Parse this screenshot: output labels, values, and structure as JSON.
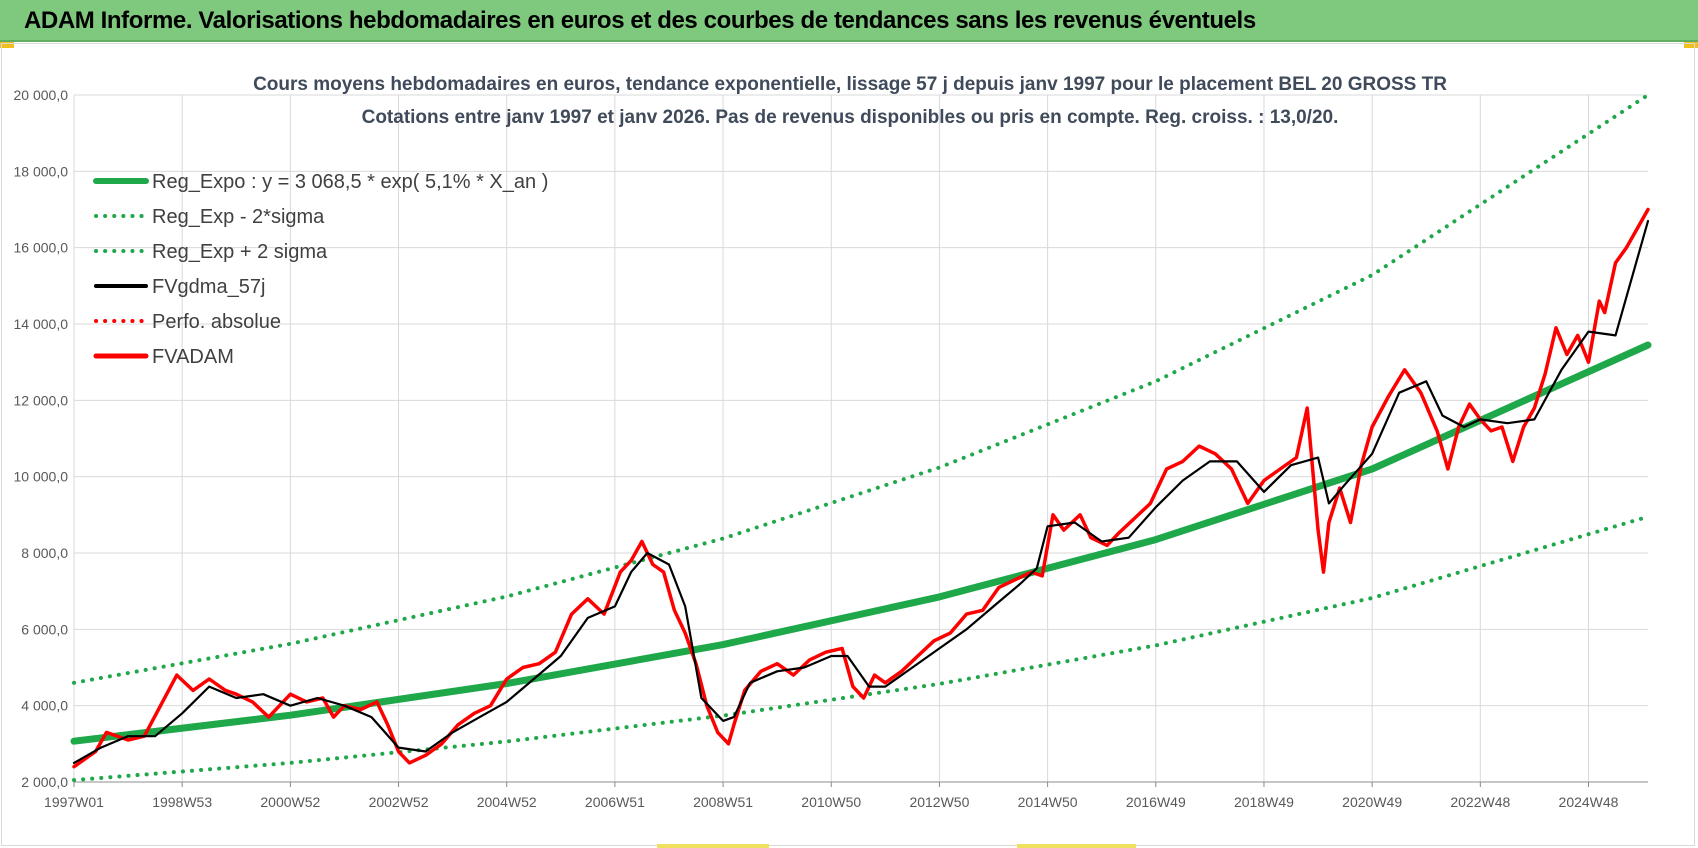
{
  "header": {
    "title": "ADAM Informe. Valorisations hebdomadaires en euros et des courbes de tendances sans les revenus éventuels"
  },
  "colors": {
    "title_bar": "#7fc97f",
    "reg_expo": "#1fa84a",
    "sigma": "#1fa84a",
    "gdma": "#000000",
    "perfo": "#ff0000",
    "fvadam": "#ff0000",
    "grid": "#d9d9d9"
  },
  "chart_data": {
    "type": "line",
    "title": "Cours moyens hebdomadaires en euros, tendance exponentielle, lissage 57 j depuis janv 1997  pour le placement BEL 20 GROSS TR",
    "subtitle": "Cotations entre janv 1997 et janv 2026. Pas de revenus disponibles ou pris en compte. Reg. croiss. : 13,0/20.",
    "xlabel": "",
    "ylabel": "",
    "ylim": [
      2000,
      20000
    ],
    "xlim": [
      1997.0,
      2026.1
    ],
    "y_ticks": [
      "2 000,0",
      "4 000,0",
      "6 000,0",
      "8 000,0",
      "10 000,0",
      "12 000,0",
      "14 000,0",
      "16 000,0",
      "18 000,0",
      "20 000,0"
    ],
    "y_tick_values": [
      2000,
      4000,
      6000,
      8000,
      10000,
      12000,
      14000,
      16000,
      18000,
      20000
    ],
    "x_ticks": [
      "1997W01",
      "1998W53",
      "2000W52",
      "2002W52",
      "2004W52",
      "2006W51",
      "2008W51",
      "2010W50",
      "2012W50",
      "2014W50",
      "2016W49",
      "2018W49",
      "2020W49",
      "2022W48",
      "2024W48"
    ],
    "x_tick_values": [
      1997.0,
      1999.0,
      2001.0,
      2003.0,
      2005.0,
      2007.0,
      2009.0,
      2011.0,
      2013.0,
      2015.0,
      2017.0,
      2019.0,
      2021.0,
      2023.0,
      2025.0
    ],
    "grid": true,
    "legend_position": "top-left",
    "series": [
      {
        "name": "Reg_Expo : y = 3 068,5 * exp( 5,1% *  X_an )",
        "style": "solid",
        "color": "#1fa84a",
        "x": [
          1997.0,
          2001.0,
          2005.0,
          2009.0,
          2013.0,
          2017.0,
          2021.0,
          2026.1
        ],
        "y": [
          3068.5,
          3750,
          4580,
          5600,
          6850,
          8350,
          10200,
          13450
        ]
      },
      {
        "name": "Reg_Exp - 2*sigma",
        "style": "dotted",
        "color": "#1fa84a",
        "x": [
          1997.0,
          2001.0,
          2005.0,
          2009.0,
          2013.0,
          2017.0,
          2021.0,
          2026.1
        ],
        "y": [
          2050,
          2500,
          3060,
          3740,
          4570,
          5580,
          6820,
          8950
        ]
      },
      {
        "name": "Reg_Exp + 2 sigma",
        "style": "dotted",
        "color": "#1fa84a",
        "x": [
          1997.0,
          2001.0,
          2005.0,
          2009.0,
          2013.0,
          2017.0,
          2021.0,
          2026.1
        ],
        "y": [
          4600,
          5620,
          6860,
          8380,
          10240,
          12500,
          15280,
          20000
        ]
      },
      {
        "name": "FVgdma_57j",
        "style": "solid",
        "color": "#000000",
        "x": [
          1997.0,
          1997.5,
          1998.0,
          1998.5,
          1999.0,
          1999.5,
          2000.0,
          2000.5,
          2001.0,
          2001.5,
          2002.0,
          2002.5,
          2003.0,
          2003.5,
          2004.0,
          2004.5,
          2005.0,
          2005.5,
          2006.0,
          2006.5,
          2007.0,
          2007.3,
          2007.6,
          2008.0,
          2008.3,
          2008.6,
          2009.0,
          2009.2,
          2009.5,
          2010.0,
          2010.5,
          2011.0,
          2011.3,
          2011.7,
          2012.0,
          2012.5,
          2013.0,
          2013.5,
          2014.0,
          2014.5,
          2014.8,
          2015.0,
          2015.5,
          2016.0,
          2016.5,
          2017.0,
          2017.5,
          2018.0,
          2018.5,
          2019.0,
          2019.5,
          2020.0,
          2020.2,
          2020.5,
          2021.0,
          2021.5,
          2022.0,
          2022.3,
          2022.7,
          2023.0,
          2023.5,
          2024.0,
          2024.5,
          2025.0,
          2025.5,
          2026.1
        ],
        "y": [
          2500,
          2900,
          3200,
          3200,
          3800,
          4500,
          4200,
          4300,
          4000,
          4200,
          4000,
          3700,
          2900,
          2800,
          3300,
          3700,
          4100,
          4700,
          5300,
          6300,
          6600,
          7500,
          8000,
          7700,
          6600,
          4200,
          3600,
          3700,
          4600,
          4900,
          5000,
          5300,
          5300,
          4500,
          4500,
          5000,
          5500,
          6000,
          6600,
          7200,
          7600,
          8700,
          8800,
          8300,
          8400,
          9200,
          9900,
          10400,
          10400,
          9600,
          10300,
          10500,
          9300,
          9800,
          10600,
          12200,
          12500,
          11600,
          11300,
          11500,
          11400,
          11500,
          12800,
          13800,
          13700,
          16700
        ]
      },
      {
        "name": "Perfo. absolue",
        "style": "dotted",
        "color": "#ff0000",
        "x": [],
        "y": []
      },
      {
        "name": "FVADAM",
        "style": "solid",
        "color": "#ff0000",
        "x": [
          1997.0,
          1997.4,
          1997.6,
          1998.0,
          1998.3,
          1998.6,
          1998.9,
          1999.2,
          1999.5,
          1999.8,
          2000.0,
          2000.3,
          2000.6,
          2001.0,
          2001.3,
          2001.6,
          2001.8,
          2002.0,
          2002.3,
          2002.6,
          2002.8,
          2003.0,
          2003.2,
          2003.5,
          2003.8,
          2004.1,
          2004.4,
          2004.7,
          2005.0,
          2005.3,
          2005.6,
          2005.9,
          2006.2,
          2006.5,
          2006.8,
          2007.1,
          2007.3,
          2007.5,
          2007.7,
          2007.9,
          2008.1,
          2008.3,
          2008.5,
          2008.7,
          2008.9,
          2009.1,
          2009.2,
          2009.4,
          2009.7,
          2010.0,
          2010.3,
          2010.6,
          2010.9,
          2011.2,
          2011.4,
          2011.6,
          2011.8,
          2012.0,
          2012.3,
          2012.6,
          2012.9,
          2013.2,
          2013.5,
          2013.8,
          2014.1,
          2014.4,
          2014.7,
          2014.9,
          2015.1,
          2015.3,
          2015.6,
          2015.8,
          2016.1,
          2016.3,
          2016.6,
          2016.9,
          2017.2,
          2017.5,
          2017.8,
          2018.1,
          2018.4,
          2018.7,
          2019.0,
          2019.3,
          2019.6,
          2019.8,
          2020.0,
          2020.1,
          2020.2,
          2020.4,
          2020.6,
          2020.8,
          2021.0,
          2021.3,
          2021.6,
          2021.9,
          2022.2,
          2022.4,
          2022.6,
          2022.8,
          2023.0,
          2023.2,
          2023.4,
          2023.6,
          2023.8,
          2024.0,
          2024.2,
          2024.4,
          2024.6,
          2024.8,
          2025.0,
          2025.2,
          2025.3,
          2025.5,
          2025.7,
          2025.9,
          2026.1
        ],
        "y": [
          2400,
          2800,
          3300,
          3100,
          3200,
          4000,
          4800,
          4400,
          4700,
          4400,
          4300,
          4100,
          3700,
          4300,
          4100,
          4200,
          3700,
          4000,
          3900,
          4100,
          3500,
          2800,
          2500,
          2700,
          3000,
          3500,
          3800,
          4000,
          4700,
          5000,
          5100,
          5400,
          6400,
          6800,
          6400,
          7500,
          7800,
          8300,
          7700,
          7500,
          6500,
          5900,
          5100,
          4000,
          3300,
          3000,
          3500,
          4400,
          4900,
          5100,
          4800,
          5200,
          5400,
          5500,
          4500,
          4200,
          4800,
          4600,
          4900,
          5300,
          5700,
          5900,
          6400,
          6500,
          7100,
          7300,
          7500,
          7400,
          9000,
          8600,
          9000,
          8400,
          8200,
          8500,
          8900,
          9300,
          10200,
          10400,
          10800,
          10600,
          10200,
          9300,
          9900,
          10200,
          10500,
          11800,
          8600,
          7500,
          8800,
          9700,
          8800,
          10300,
          11300,
          12100,
          12800,
          12200,
          11200,
          10200,
          11300,
          11900,
          11500,
          11200,
          11300,
          10400,
          11300,
          11800,
          12700,
          13900,
          13200,
          13700,
          13000,
          14600,
          14300,
          15600,
          16000,
          16500,
          17000
        ]
      }
    ]
  }
}
